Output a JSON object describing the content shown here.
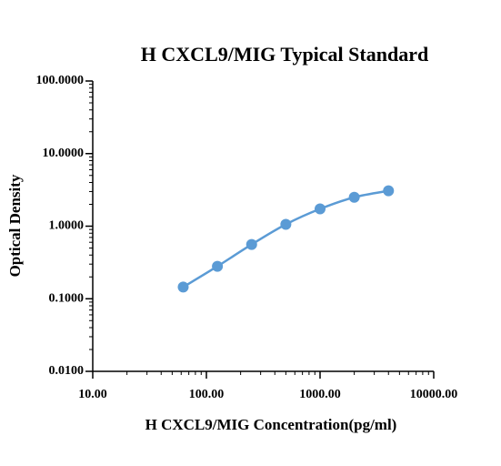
{
  "chart_data": {
    "type": "line",
    "title": "H CXCL9/MIG Typical Standard",
    "x_label": "H CXCL9/MIG Concentration(pg/ml)",
    "y_label": "Optical Density",
    "x_scale": "log",
    "y_scale": "log",
    "x": [
      62.5,
      125,
      250,
      500,
      1000,
      2000,
      4000
    ],
    "series": [
      {
        "color": "#5b9bd5",
        "values": [
          0.145,
          0.28,
          0.56,
          1.06,
          1.73,
          2.5,
          3.07
        ]
      }
    ],
    "xlim": [
      10,
      10000
    ],
    "xticks": [
      {
        "value": 10,
        "label": "10.00"
      },
      {
        "value": 100,
        "label": "100.00"
      },
      {
        "value": 1000,
        "label": "1000.00"
      },
      {
        "value": 10000,
        "label": "10000.00"
      }
    ],
    "ylim": [
      0.01,
      100
    ],
    "yticks": [
      {
        "value": 0.01,
        "label": "0.0100"
      },
      {
        "value": 0.1,
        "label": "0.1000"
      },
      {
        "value": 1,
        "label": "1.0000"
      },
      {
        "value": 10,
        "label": "10.0000"
      },
      {
        "value": 100,
        "label": "100.0000"
      }
    ]
  }
}
